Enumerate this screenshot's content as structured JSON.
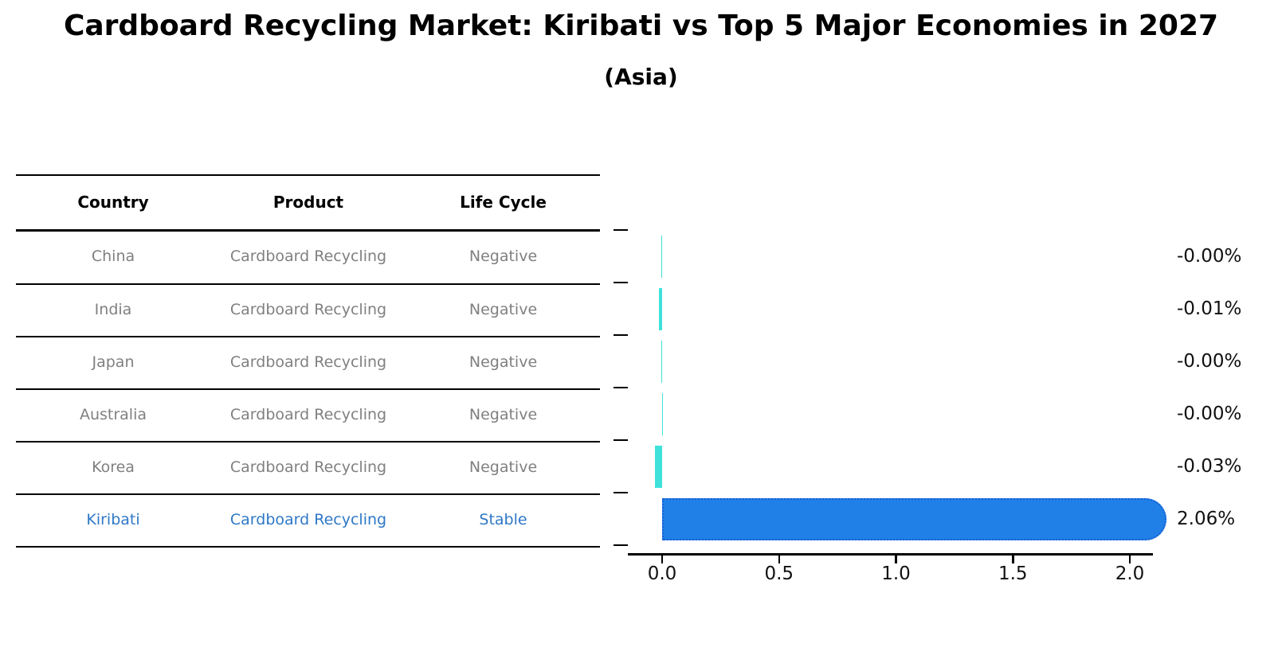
{
  "title": "Cardboard Recycling Market: Kiribati vs Top 5 Major Economies in 2027",
  "subtitle": "(Asia)",
  "table": {
    "headers": [
      "Country",
      "Product",
      "Life Cycle"
    ],
    "rows": [
      {
        "country": "China",
        "product": "Cardboard Recycling",
        "life_cycle": "Negative"
      },
      {
        "country": "India",
        "product": "Cardboard Recycling",
        "life_cycle": "Negative"
      },
      {
        "country": "Japan",
        "product": "Cardboard Recycling",
        "life_cycle": "Negative"
      },
      {
        "country": "Australia",
        "product": "Cardboard Recycling",
        "life_cycle": "Negative"
      },
      {
        "country": "Korea",
        "product": "Cardboard Recycling",
        "life_cycle": "Negative"
      },
      {
        "country": "Kiribati",
        "product": "Cardboard Recycling",
        "life_cycle": "Stable"
      }
    ],
    "highlight_row": 5
  },
  "chart_data": {
    "type": "bar",
    "orientation": "horizontal",
    "title": "Cardboard Recycling Market: Kiribati vs Top 5 Major Economies in 2027 (Asia)",
    "categories": [
      "China",
      "India",
      "Japan",
      "Australia",
      "Korea",
      "Kiribati"
    ],
    "values": [
      -0.005,
      -0.012,
      -0.004,
      -0.001,
      -0.03,
      2.06
    ],
    "value_labels": [
      "-0.00%",
      "-0.01%",
      "-0.00%",
      "-0.00%",
      "-0.03%",
      "2.06%"
    ],
    "highlight_index": 5,
    "x_tick_labels": [
      "0.0",
      "0.5",
      "1.0",
      "1.5",
      "2.0"
    ],
    "x_tick_values": [
      0,
      0.5,
      1.0,
      1.5,
      2.0
    ],
    "xlim": [
      -0.15,
      2.1
    ],
    "grid": false,
    "legend": null,
    "unit": "%"
  },
  "colors": {
    "bar_default": "#3ee2da",
    "bar_highlight": "#2080e8",
    "bar_highlight_border": "#1a5fd0",
    "highlight_text": "#2e78c6",
    "row_text": "#808080",
    "header_text": "#000000"
  }
}
